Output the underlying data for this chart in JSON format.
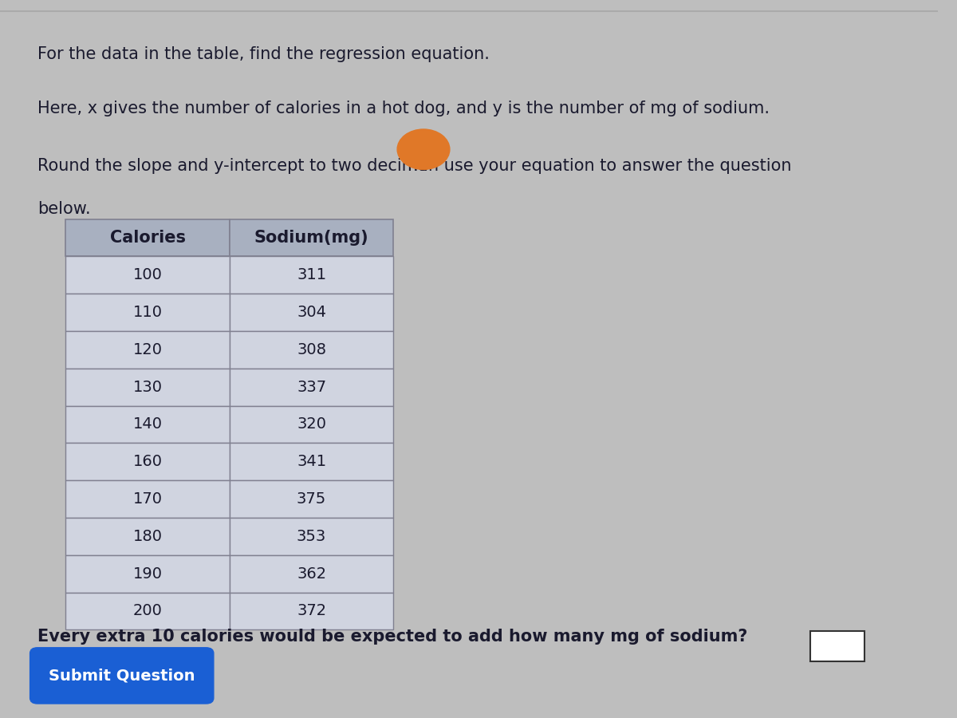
{
  "title_line1": "For the data in the table, find the regression equation.",
  "title_line2": "Here, x gives the number of calories in a hot dog, and y is the number of mg of sodium.",
  "title_line3a": "Round the slope and y-intercept to two decima",
  "title_line3b": "hen use your equation to answer the question",
  "title_line4": "below.",
  "calories": [
    100,
    110,
    120,
    130,
    140,
    160,
    170,
    180,
    190,
    200
  ],
  "sodium": [
    311,
    304,
    308,
    337,
    320,
    341,
    375,
    353,
    362,
    372
  ],
  "col1_header": "Calories",
  "col2_header": "Sodium(mg)",
  "question_text": "Every extra 10 calories would be expected to add how many mg of sodium?",
  "submit_text": "Submit Question",
  "bg_color": "#bebebe",
  "table_header_bg": "#a8b0c0",
  "table_row_bg": "#d0d4e0",
  "table_border_color": "#808090",
  "submit_btn_color": "#1a5fd4",
  "submit_btn_text_color": "#ffffff",
  "text_color": "#1a1a2e",
  "font_size_body": 15,
  "font_size_table": 14,
  "orange_circle_color": "#e07828",
  "top_line_color": "#aaaaaa",
  "answer_box_color": "#ffffff",
  "answer_box_border": "#333333"
}
